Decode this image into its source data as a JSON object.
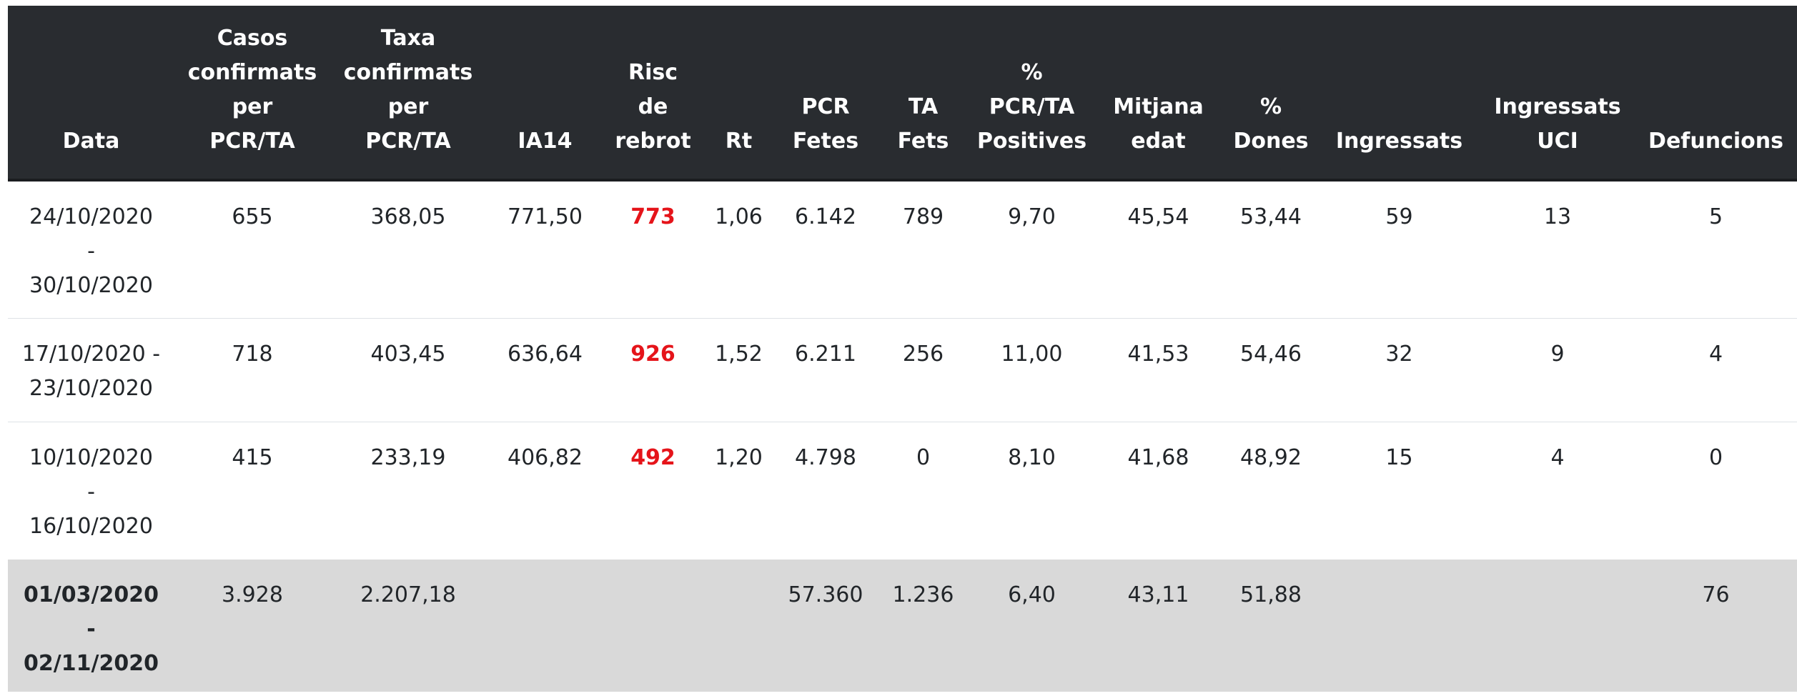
{
  "table": {
    "headers": [
      [
        "Data"
      ],
      [
        "Casos",
        "confirmats",
        "per",
        "PCR/TA"
      ],
      [
        "Taxa",
        "confirmats",
        "per",
        "PCR/TA"
      ],
      [
        "IA14"
      ],
      [
        "Risc",
        "de",
        "rebrot"
      ],
      [
        "Rt"
      ],
      [
        "PCR",
        "Fetes"
      ],
      [
        "TA",
        "Fets"
      ],
      [
        "%",
        "PCR/TA",
        "Positives"
      ],
      [
        "Mitjana",
        "edat"
      ],
      [
        "%",
        "Dones"
      ],
      [
        "Ingressats"
      ],
      [
        "Ingressats",
        "UCI"
      ],
      [
        "Defuncions"
      ]
    ],
    "rows": [
      {
        "date_lines": [
          "24/10/2020",
          "-",
          "30/10/2020"
        ],
        "casos": "655",
        "taxa": "368,05",
        "ia14": "771,50",
        "risc": "773",
        "rt": "1,06",
        "pcr": "6.142",
        "ta": "789",
        "pct_positives": "9,70",
        "mitjana_edat": "45,54",
        "pct_dones": "53,44",
        "ingressats": "59",
        "uci": "13",
        "defuncions": "5"
      },
      {
        "date_lines": [
          "17/10/2020 -",
          "23/10/2020"
        ],
        "casos": "718",
        "taxa": "403,45",
        "ia14": "636,64",
        "risc": "926",
        "rt": "1,52",
        "pcr": "6.211",
        "ta": "256",
        "pct_positives": "11,00",
        "mitjana_edat": "41,53",
        "pct_dones": "54,46",
        "ingressats": "32",
        "uci": "9",
        "defuncions": "4"
      },
      {
        "date_lines": [
          "10/10/2020",
          "-",
          "16/10/2020"
        ],
        "casos": "415",
        "taxa": "233,19",
        "ia14": "406,82",
        "risc": "492",
        "rt": "1,20",
        "pcr": "4.798",
        "ta": "0",
        "pct_positives": "8,10",
        "mitjana_edat": "41,68",
        "pct_dones": "48,92",
        "ingressats": "15",
        "uci": "4",
        "defuncions": "0"
      }
    ],
    "total": {
      "date_lines": [
        "01/03/2020",
        "-",
        "02/11/2020"
      ],
      "casos": "3.928",
      "taxa": "2.207,18",
      "ia14": "",
      "risc": "",
      "rt": "",
      "pcr": "57.360",
      "ta": "1.236",
      "pct_positives": "6,40",
      "mitjana_edat": "43,11",
      "pct_dones": "51,88",
      "ingressats": "",
      "uci": "",
      "defuncions": "76"
    }
  },
  "colors": {
    "header_background": "#292c30",
    "header_text": "#ffffff",
    "risk_text": "#e5141a",
    "total_row_background": "#d9d9d9"
  }
}
